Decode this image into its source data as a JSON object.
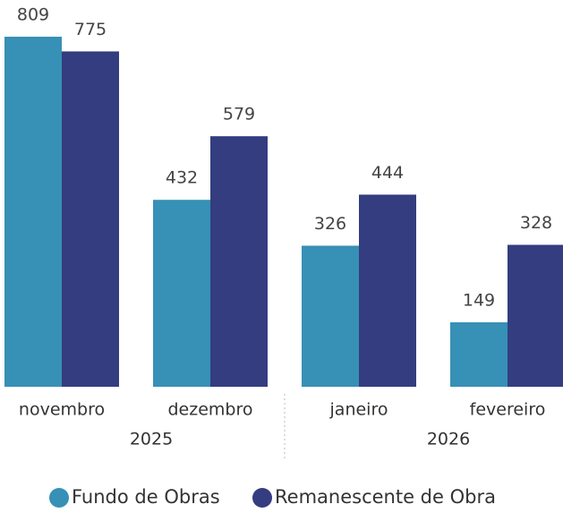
{
  "chart_data": {
    "type": "bar",
    "categories": [
      "novembro",
      "dezembro",
      "janeiro",
      "fevereiro"
    ],
    "year_groups": [
      {
        "label": "2025",
        "count": 2
      },
      {
        "label": "2026",
        "count": 2
      }
    ],
    "series": [
      {
        "name": "Fundo de Obras",
        "color": "#3790b5",
        "values": [
          809,
          432,
          326,
          149
        ]
      },
      {
        "name": "Remanescente de Obra",
        "color": "#333d80",
        "values": [
          775,
          579,
          444,
          328
        ]
      }
    ]
  }
}
